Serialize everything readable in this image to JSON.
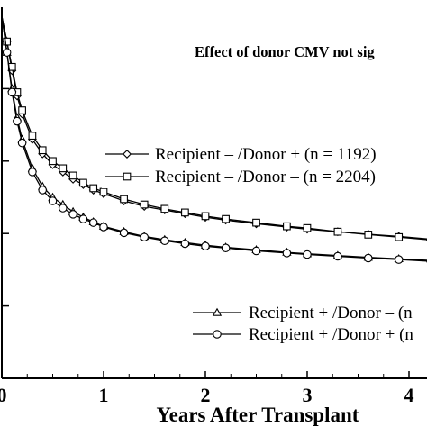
{
  "chart_data": {
    "type": "line",
    "title": "",
    "xlabel": "Years After Transplant",
    "ylabel": "",
    "xlim": [
      0,
      4.5
    ],
    "ylim": [
      0,
      1
    ],
    "grid": false,
    "x_ticks": [
      "0",
      "1",
      "2",
      "3",
      "4"
    ],
    "annotation": "Effect of donor CMV not sig",
    "legend_upper": [
      "Recipient – /Donor + (n = 1192)",
      "Recipient – /Donor – (n = 2204)"
    ],
    "legend_lower": [
      "Recipient + /Donor – (n",
      "Recipient + /Donor + (n"
    ],
    "series": [
      {
        "name": "Recipient – /Donor + (n = 1192)",
        "marker": "diamond",
        "x": [
          0,
          0.05,
          0.1,
          0.15,
          0.2,
          0.3,
          0.4,
          0.5,
          0.6,
          0.7,
          0.8,
          0.9,
          1.0,
          1.2,
          1.4,
          1.6,
          1.8,
          2.0,
          2.2,
          2.5,
          2.8,
          3.0,
          3.3,
          3.6,
          3.9,
          4.2,
          4.5
        ],
        "y": [
          1.0,
          0.93,
          0.85,
          0.78,
          0.73,
          0.66,
          0.62,
          0.59,
          0.57,
          0.55,
          0.535,
          0.52,
          0.51,
          0.49,
          0.475,
          0.465,
          0.455,
          0.445,
          0.437,
          0.427,
          0.418,
          0.412,
          0.405,
          0.398,
          0.392,
          0.385,
          0.38
        ]
      },
      {
        "name": "Recipient – /Donor – (n = 2204)",
        "marker": "square",
        "x": [
          0,
          0.05,
          0.1,
          0.15,
          0.2,
          0.3,
          0.4,
          0.5,
          0.6,
          0.7,
          0.8,
          0.9,
          1.0,
          1.2,
          1.4,
          1.6,
          1.8,
          2.0,
          2.2,
          2.5,
          2.8,
          3.0,
          3.3,
          3.6,
          3.9,
          4.2,
          4.5
        ],
        "y": [
          1.0,
          0.93,
          0.86,
          0.79,
          0.74,
          0.67,
          0.63,
          0.6,
          0.58,
          0.56,
          0.54,
          0.525,
          0.515,
          0.495,
          0.48,
          0.468,
          0.458,
          0.448,
          0.44,
          0.43,
          0.42,
          0.415,
          0.405,
          0.397,
          0.39,
          0.383,
          0.378
        ]
      },
      {
        "name": "Recipient + /Donor – (n",
        "marker": "triangle",
        "x": [
          0,
          0.05,
          0.1,
          0.15,
          0.2,
          0.3,
          0.4,
          0.5,
          0.6,
          0.7,
          0.8,
          0.9,
          1.0,
          1.2,
          1.4,
          1.6,
          1.8,
          2.0,
          2.2,
          2.5,
          2.8,
          3.0,
          3.3,
          3.6,
          3.9,
          4.2,
          4.5
        ],
        "y": [
          1.0,
          0.9,
          0.8,
          0.72,
          0.66,
          0.58,
          0.53,
          0.5,
          0.48,
          0.46,
          0.445,
          0.432,
          0.42,
          0.405,
          0.392,
          0.383,
          0.375,
          0.368,
          0.362,
          0.355,
          0.348,
          0.344,
          0.339,
          0.334,
          0.33,
          0.326,
          0.322
        ]
      },
      {
        "name": "Recipient + /Donor + (n",
        "marker": "circle",
        "x": [
          0,
          0.05,
          0.1,
          0.15,
          0.2,
          0.3,
          0.4,
          0.5,
          0.6,
          0.7,
          0.8,
          0.9,
          1.0,
          1.2,
          1.4,
          1.6,
          1.8,
          2.0,
          2.2,
          2.5,
          2.8,
          3.0,
          3.3,
          3.6,
          3.9,
          4.2,
          4.5
        ],
        "y": [
          1.0,
          0.9,
          0.79,
          0.71,
          0.65,
          0.57,
          0.52,
          0.49,
          0.47,
          0.453,
          0.44,
          0.43,
          0.418,
          0.402,
          0.39,
          0.38,
          0.372,
          0.365,
          0.36,
          0.352,
          0.346,
          0.342,
          0.337,
          0.332,
          0.328,
          0.324,
          0.32
        ]
      }
    ]
  }
}
